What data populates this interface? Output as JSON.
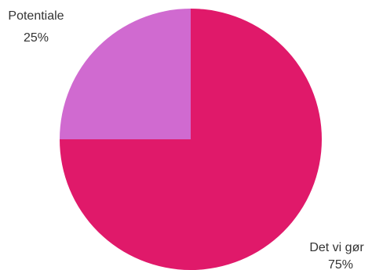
{
  "chart_data": {
    "type": "pie",
    "title": "",
    "legend": "none",
    "start": "top",
    "direction": "clockwise",
    "slices": [
      {
        "label": "Det vi gør",
        "value": 75,
        "value_label": "75%",
        "color": "#e0196a",
        "label_position": "bottom-right"
      },
      {
        "label": "Potentiale",
        "value": 25,
        "value_label": "25%",
        "color": "#d06ad0",
        "label_position": "top-left"
      }
    ]
  }
}
